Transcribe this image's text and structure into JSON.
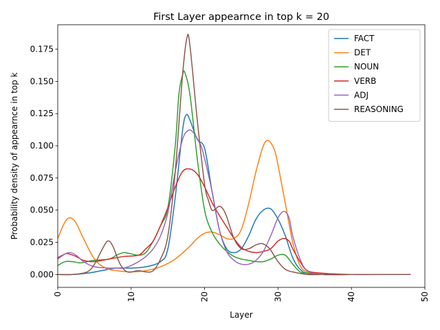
{
  "chart_data": {
    "type": "line",
    "title": "First Layer appearnce in top k = 20",
    "xlabel": "Layer",
    "ylabel": "Probability density of appearnce in top k",
    "xlim": [
      0,
      50
    ],
    "ylim": [
      -0.01,
      0.194
    ],
    "xticks": [
      0,
      10,
      20,
      30,
      40,
      50
    ],
    "xtick_labels": [
      "0",
      "10",
      "20",
      "30",
      "40",
      "50"
    ],
    "yticks": [
      0.0,
      0.025,
      0.05,
      0.075,
      0.1,
      0.125,
      0.15,
      0.175
    ],
    "ytick_labels": [
      "0.000",
      "0.025",
      "0.050",
      "0.075",
      "0.100",
      "0.125",
      "0.150",
      "0.175"
    ],
    "xtick_rotation": 90,
    "grid": false,
    "legend_position": "top-right",
    "series": [
      {
        "name": "FACT",
        "color": "#1f77b4",
        "x": [
          0,
          2,
          4,
          6,
          8,
          10,
          12,
          14,
          15,
          16,
          17,
          17.5,
          18,
          19,
          20,
          21,
          22,
          23,
          24,
          25,
          26,
          27,
          28,
          29,
          30,
          31,
          32,
          33,
          34,
          36,
          40,
          44,
          48
        ],
        "y": [
          0.0,
          0.0,
          0.001,
          0.003,
          0.005,
          0.005,
          0.006,
          0.01,
          0.02,
          0.06,
          0.112,
          0.124,
          0.12,
          0.105,
          0.098,
          0.065,
          0.035,
          0.02,
          0.017,
          0.02,
          0.03,
          0.043,
          0.05,
          0.051,
          0.043,
          0.03,
          0.013,
          0.004,
          0.001,
          0.0,
          0.0,
          0.0,
          0.0
        ]
      },
      {
        "name": "DET",
        "color": "#ff7f0e",
        "x": [
          0,
          1,
          1.7,
          2.5,
          3.5,
          5,
          6.5,
          8,
          10,
          12,
          14,
          16,
          18,
          19,
          20,
          21,
          22,
          23,
          24,
          25,
          26,
          27,
          28,
          28.7,
          29.5,
          30,
          31,
          32,
          33,
          34,
          36,
          40,
          44,
          48
        ],
        "y": [
          0.028,
          0.041,
          0.044,
          0.04,
          0.028,
          0.012,
          0.005,
          0.003,
          0.002,
          0.003,
          0.006,
          0.012,
          0.022,
          0.028,
          0.032,
          0.033,
          0.031,
          0.028,
          0.028,
          0.035,
          0.055,
          0.08,
          0.1,
          0.104,
          0.097,
          0.085,
          0.055,
          0.025,
          0.007,
          0.002,
          0.0,
          0.0,
          0.0,
          0.0
        ]
      },
      {
        "name": "NOUN",
        "color": "#2ca02c",
        "x": [
          0,
          1,
          2,
          3,
          4,
          5,
          7,
          8,
          9,
          10,
          11,
          12,
          13,
          14,
          15,
          16,
          16.5,
          17,
          17.3,
          18,
          19,
          20,
          21,
          22,
          23,
          24,
          25,
          26,
          27,
          28,
          29,
          30,
          31,
          32,
          33,
          34,
          36,
          40,
          44,
          48
        ],
        "y": [
          0.007,
          0.01,
          0.01,
          0.009,
          0.01,
          0.011,
          0.012,
          0.015,
          0.017,
          0.016,
          0.015,
          0.017,
          0.026,
          0.038,
          0.052,
          0.1,
          0.14,
          0.155,
          0.157,
          0.14,
          0.09,
          0.05,
          0.033,
          0.024,
          0.018,
          0.014,
          0.012,
          0.011,
          0.01,
          0.01,
          0.012,
          0.015,
          0.015,
          0.008,
          0.002,
          0.001,
          0.0,
          0.0,
          0.0,
          0.0
        ]
      },
      {
        "name": "VERB",
        "color": "#d62728",
        "x": [
          0,
          1,
          1.5,
          2.5,
          3.5,
          5,
          7,
          9,
          11,
          12,
          13,
          14,
          15,
          16,
          17,
          18,
          19,
          20,
          21,
          22,
          23,
          24,
          25,
          26,
          27,
          28,
          29,
          30,
          30.8,
          31.5,
          32,
          33,
          34,
          36,
          40,
          44,
          48
        ],
        "y": [
          0.013,
          0.016,
          0.016,
          0.014,
          0.011,
          0.01,
          0.012,
          0.014,
          0.015,
          0.02,
          0.026,
          0.038,
          0.052,
          0.068,
          0.08,
          0.082,
          0.078,
          0.068,
          0.056,
          0.046,
          0.037,
          0.028,
          0.021,
          0.018,
          0.017,
          0.018,
          0.02,
          0.026,
          0.028,
          0.026,
          0.02,
          0.01,
          0.003,
          0.001,
          0.0,
          0.0,
          0.0
        ]
      },
      {
        "name": "ADJ",
        "color": "#9467bd",
        "x": [
          0,
          1,
          1.7,
          2.5,
          3.5,
          5,
          7,
          8,
          9,
          10,
          11,
          12,
          13,
          14,
          15,
          16,
          17,
          17.8,
          18.5,
          19.5,
          20,
          21,
          22,
          23,
          24,
          25,
          26,
          27,
          28,
          29,
          30,
          30.8,
          31.5,
          32,
          33,
          34,
          36,
          40,
          44,
          48
        ],
        "y": [
          0.012,
          0.016,
          0.017,
          0.015,
          0.01,
          0.006,
          0.005,
          0.005,
          0.005,
          0.007,
          0.01,
          0.014,
          0.02,
          0.03,
          0.048,
          0.08,
          0.105,
          0.112,
          0.11,
          0.1,
          0.09,
          0.065,
          0.035,
          0.018,
          0.011,
          0.008,
          0.008,
          0.011,
          0.018,
          0.03,
          0.044,
          0.049,
          0.044,
          0.03,
          0.012,
          0.003,
          0.0,
          0.0,
          0.0,
          0.0
        ]
      },
      {
        "name": "REASONING",
        "color": "#8c564b",
        "x": [
          0,
          2,
          4,
          5,
          6,
          6.8,
          7.5,
          8.5,
          9.5,
          11,
          12,
          13,
          14,
          15,
          16,
          17,
          17.6,
          18,
          19,
          20,
          20.5,
          21,
          21.5,
          22,
          22.5,
          23,
          24,
          25,
          26,
          27,
          27.8,
          28.5,
          29,
          30,
          31,
          32,
          34,
          36,
          40,
          44,
          48
        ],
        "y": [
          0.0,
          0.0,
          0.002,
          0.008,
          0.019,
          0.026,
          0.022,
          0.008,
          0.002,
          0.003,
          0.002,
          0.003,
          0.012,
          0.03,
          0.08,
          0.155,
          0.184,
          0.178,
          0.12,
          0.07,
          0.058,
          0.05,
          0.051,
          0.053,
          0.051,
          0.045,
          0.028,
          0.02,
          0.02,
          0.023,
          0.024,
          0.022,
          0.019,
          0.01,
          0.004,
          0.002,
          0.0,
          0.0,
          0.0,
          0.0,
          0.0
        ]
      }
    ]
  }
}
